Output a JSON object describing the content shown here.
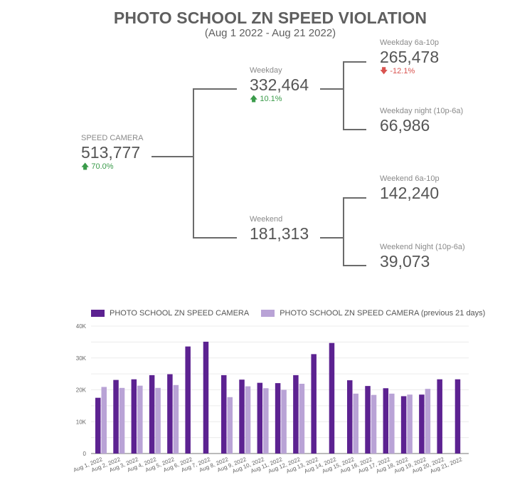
{
  "header": {
    "title": "PHOTO SCHOOL ZN SPEED VIOLATION",
    "subtitle": "(Aug 1 2022 - Aug 21 2022)"
  },
  "tree": {
    "root": {
      "label": "SPEED CAMERA",
      "value": "513,777",
      "delta": "70.0%",
      "delta_dir": "up"
    },
    "weekday": {
      "label": "Weekday",
      "value": "332,464",
      "delta": "10.1%",
      "delta_dir": "up"
    },
    "weekend": {
      "label": "Weekend",
      "value": "181,313"
    },
    "weekday_day": {
      "label": "Weekday 6a-10p",
      "value": "265,478",
      "delta": "-12.1%",
      "delta_dir": "down"
    },
    "weekday_night": {
      "label": "Weekday night (10p-6a)",
      "value": "66,986"
    },
    "weekend_day": {
      "label": "Weekend 6a-10p",
      "value": "142,240"
    },
    "weekend_night": {
      "label": "Weekend Night (10p-6a)",
      "value": "39,073"
    }
  },
  "colors": {
    "current": "#5c2291",
    "previous": "#b9a3d6",
    "delta_up": "#3a9b4a",
    "delta_down": "#d9534f"
  },
  "chart_data": {
    "type": "bar",
    "title": "",
    "xlabel": "",
    "ylabel": "",
    "ylim": [
      0,
      40000
    ],
    "yticks": [
      "0",
      "10K",
      "20K",
      "30K",
      "40K"
    ],
    "grid": true,
    "legend_position": "top",
    "categories": [
      "Aug 1, 2022",
      "Aug 2, 2022",
      "Aug 3, 2022",
      "Aug 4, 2022",
      "Aug 5, 2022",
      "Aug 6, 2022",
      "Aug 7, 2022",
      "Aug 8, 2022",
      "Aug 9, 2022",
      "Aug 10, 2022",
      "Aug 11, 2022",
      "Aug 12, 2022",
      "Aug 13, 2022",
      "Aug 14, 2022",
      "Aug 15, 2022",
      "Aug 16, 2022",
      "Aug 17, 2022",
      "Aug 18, 2022",
      "Aug 19, 2022",
      "Aug 20, 2022",
      "Aug 21, 2022"
    ],
    "series": [
      {
        "name": "PHOTO SCHOOL ZN SPEED CAMERA",
        "color": "#5c2291",
        "values": [
          17500,
          23100,
          23300,
          24600,
          24900,
          33600,
          35100,
          24600,
          23200,
          22200,
          22100,
          24600,
          31200,
          34700,
          23000,
          21200,
          20500,
          18000,
          18500,
          23300,
          23300
        ]
      },
      {
        "name": "PHOTO SCHOOL ZN SPEED CAMERA (previous 21 days)",
        "color": "#b9a3d6",
        "values": [
          20900,
          20600,
          21300,
          20600,
          21500,
          null,
          null,
          17700,
          21100,
          20500,
          20000,
          21900,
          null,
          null,
          18800,
          18400,
          18800,
          18500,
          20300,
          null,
          null
        ]
      }
    ]
  }
}
